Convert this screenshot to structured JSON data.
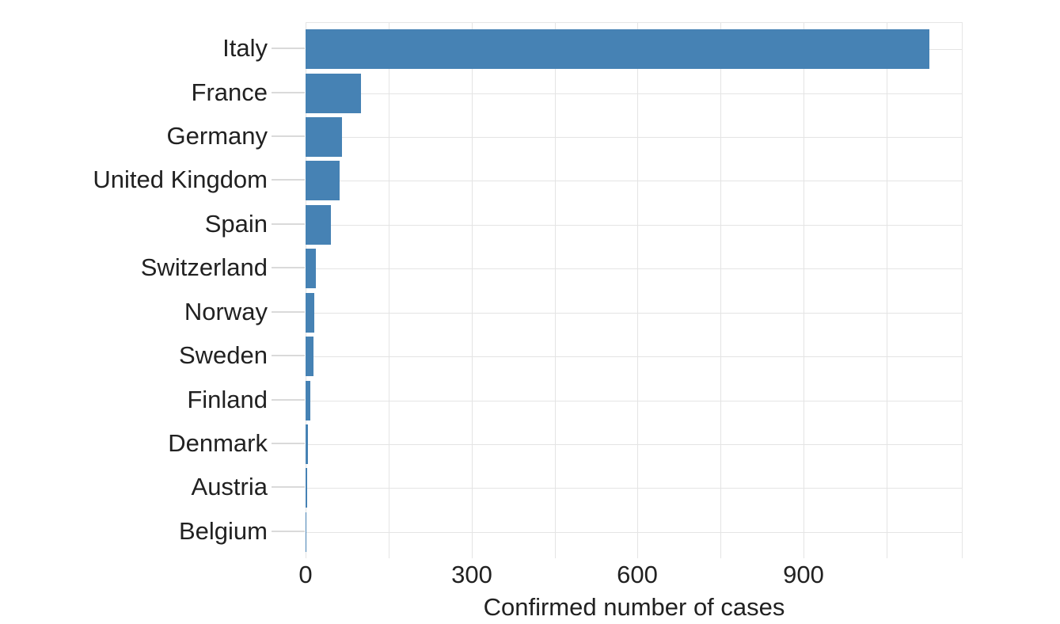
{
  "chart_data": {
    "type": "bar",
    "orientation": "horizontal",
    "title": "",
    "xlabel": "Confirmed number of cases",
    "ylabel": "",
    "categories": [
      "Italy",
      "France",
      "Germany",
      "United Kingdom",
      "Spain",
      "Switzerland",
      "Norway",
      "Sweden",
      "Finland",
      "Denmark",
      "Austria",
      "Belgium"
    ],
    "values": [
      1128,
      100,
      66,
      61,
      46,
      19,
      16,
      15,
      8,
      4,
      3,
      2
    ],
    "xlim": [
      0,
      1186
    ],
    "x_major_ticks": [
      0,
      300,
      600,
      900
    ],
    "x_major_tick_labels": [
      "0",
      "300",
      "600",
      "900"
    ],
    "x_minor_gridlines": [
      150,
      450,
      750,
      1050
    ],
    "grid": true,
    "legend": "none",
    "colors": {
      "bar_fill": "#4682B4",
      "gridline": "#e4e4e4",
      "axis_tick": "#dadada",
      "text": "#212121",
      "background": "#ffffff"
    }
  }
}
